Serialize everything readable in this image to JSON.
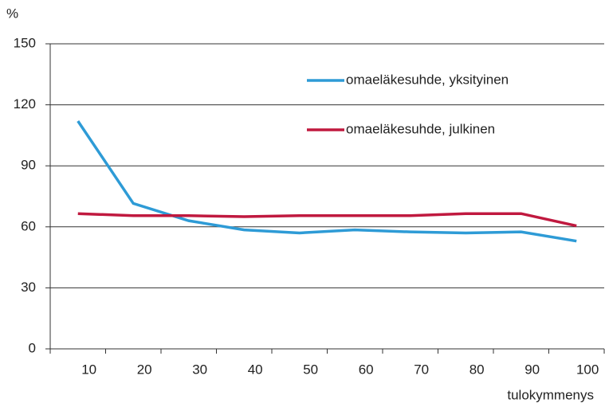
{
  "chart_data": {
    "type": "line",
    "y_label": "%",
    "x_label": "tulokymmenys",
    "categories": [
      "10",
      "20",
      "30",
      "40",
      "50",
      "60",
      "70",
      "80",
      "90",
      "100"
    ],
    "series": [
      {
        "name": "omaeläkesuhde, yksityinen",
        "color": "#2e9bd6",
        "values": [
          112,
          71.5,
          63,
          58.5,
          57,
          58.5,
          57.5,
          57,
          57.5,
          53
        ]
      },
      {
        "name": "omaeläkesuhde, julkinen",
        "color": "#c0193f",
        "values": [
          66.5,
          65.5,
          65.5,
          65,
          65.5,
          65.5,
          65.5,
          66.5,
          66.5,
          60.5
        ]
      }
    ],
    "ylim": [
      0,
      150
    ],
    "yticks": [
      0,
      30,
      60,
      90,
      120,
      150
    ],
    "grid": true,
    "legend": "top-right"
  }
}
